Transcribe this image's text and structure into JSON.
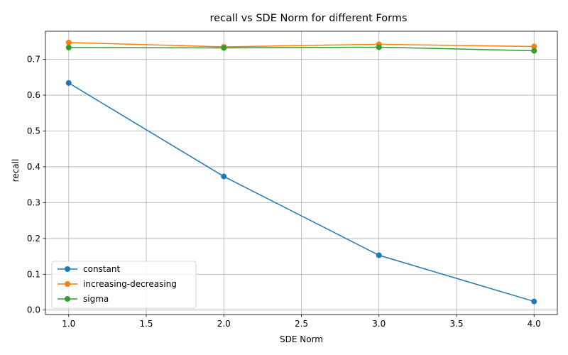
{
  "chart_data": {
    "type": "line",
    "title": "recall vs SDE Norm for different Forms",
    "xlabel": "SDE Norm",
    "ylabel": "recall",
    "xlim": [
      0.85,
      4.15
    ],
    "ylim": [
      -0.0125,
      0.7785
    ],
    "x_ticks": [
      1.0,
      1.5,
      2.0,
      2.5,
      3.0,
      3.5,
      4.0
    ],
    "y_ticks": [
      0.0,
      0.1,
      0.2,
      0.3,
      0.4,
      0.5,
      0.6,
      0.7
    ],
    "x_tick_labels": [
      "1.0",
      "1.5",
      "2.0",
      "2.5",
      "3.0",
      "3.5",
      "4.0"
    ],
    "y_tick_labels": [
      "0.0",
      "0.1",
      "0.2",
      "0.3",
      "0.4",
      "0.5",
      "0.6",
      "0.7"
    ],
    "grid": true,
    "legend_position": "lower-left",
    "x": [
      1.0,
      2.0,
      3.0,
      4.0
    ],
    "series": [
      {
        "name": "constant",
        "color": "#1f77b4",
        "values": [
          0.634,
          0.373,
          0.153,
          0.024
        ]
      },
      {
        "name": "increasing-decreasing",
        "color": "#ff7f0e",
        "values": [
          0.747,
          0.735,
          0.742,
          0.736
        ]
      },
      {
        "name": "sigma",
        "color": "#2ca02c",
        "values": [
          0.733,
          0.732,
          0.734,
          0.724
        ]
      }
    ]
  }
}
